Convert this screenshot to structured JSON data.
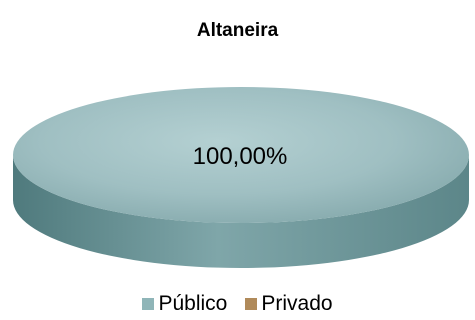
{
  "chart_data": {
    "type": "pie",
    "title": "Altaneira",
    "categories": [
      "Público",
      "Privado"
    ],
    "values": [
      100.0,
      0.0
    ],
    "data_labels": [
      "100,00%"
    ],
    "colors": [
      "#8fb5b8",
      "#b08a5a"
    ],
    "legend_position": "bottom",
    "style": "3d"
  }
}
